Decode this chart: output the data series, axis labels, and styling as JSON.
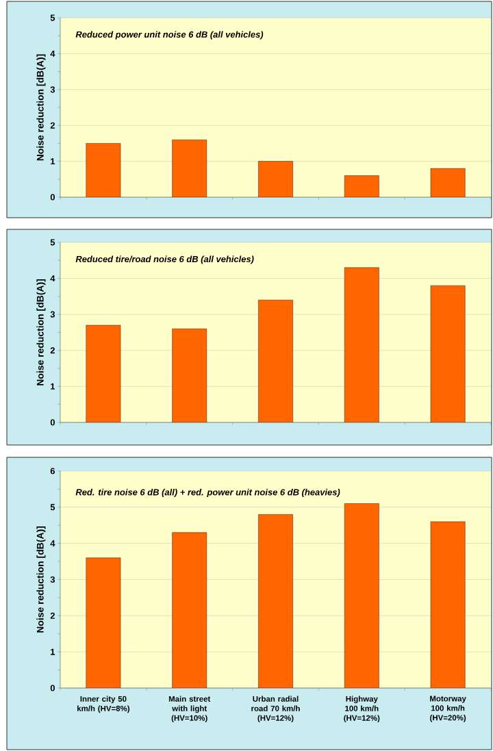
{
  "chart_data": [
    {
      "type": "bar",
      "title": "Reduced power unit noise 6 dB (all vehicles)",
      "ylabel": "Noise reduction [dB(A)]",
      "categories": [
        null,
        null,
        null,
        null,
        null
      ],
      "values": [
        1.5,
        1.6,
        1.0,
        0.6,
        0.8
      ],
      "color": "#ff6600",
      "ylim": [
        0,
        5
      ],
      "yticks": [
        0,
        1,
        2,
        3,
        4,
        5
      ],
      "grid": "y",
      "tick_labels": "y"
    },
    {
      "type": "bar",
      "title": "Reduced tire/road noise 6 dB (all vehicles)",
      "ylabel": "Noise reduction [dB(A)]",
      "categories": [
        null,
        null,
        null,
        null,
        null
      ],
      "values": [
        2.7,
        2.6,
        3.4,
        4.3,
        3.8
      ],
      "color": "#ff6600",
      "ylim": [
        0,
        5
      ],
      "yticks": [
        0,
        1,
        2,
        3,
        4,
        5
      ],
      "grid": "y",
      "tick_labels": "y"
    },
    {
      "type": "bar",
      "title": "Red. tire noise 6 dB (all) + red. power unit noise 6 dB (heavies)",
      "ylabel": "Noise reduction [dB(A)]",
      "categories": [
        "Inner city 50 km/h (HV=8%)",
        "Main street with light (HV=10%)",
        "Urban radial road 70 km/h (HV=12%)",
        "Highway 100 km/h (HV=12%)",
        "Motorway 100 km/h (HV=20%)"
      ],
      "values": [
        3.6,
        4.3,
        4.8,
        5.1,
        4.6
      ],
      "color": "#ff6600",
      "ylim": [
        0,
        6
      ],
      "yticks": [
        0,
        1,
        2,
        3,
        4,
        5,
        6
      ],
      "grid": "y"
    }
  ]
}
